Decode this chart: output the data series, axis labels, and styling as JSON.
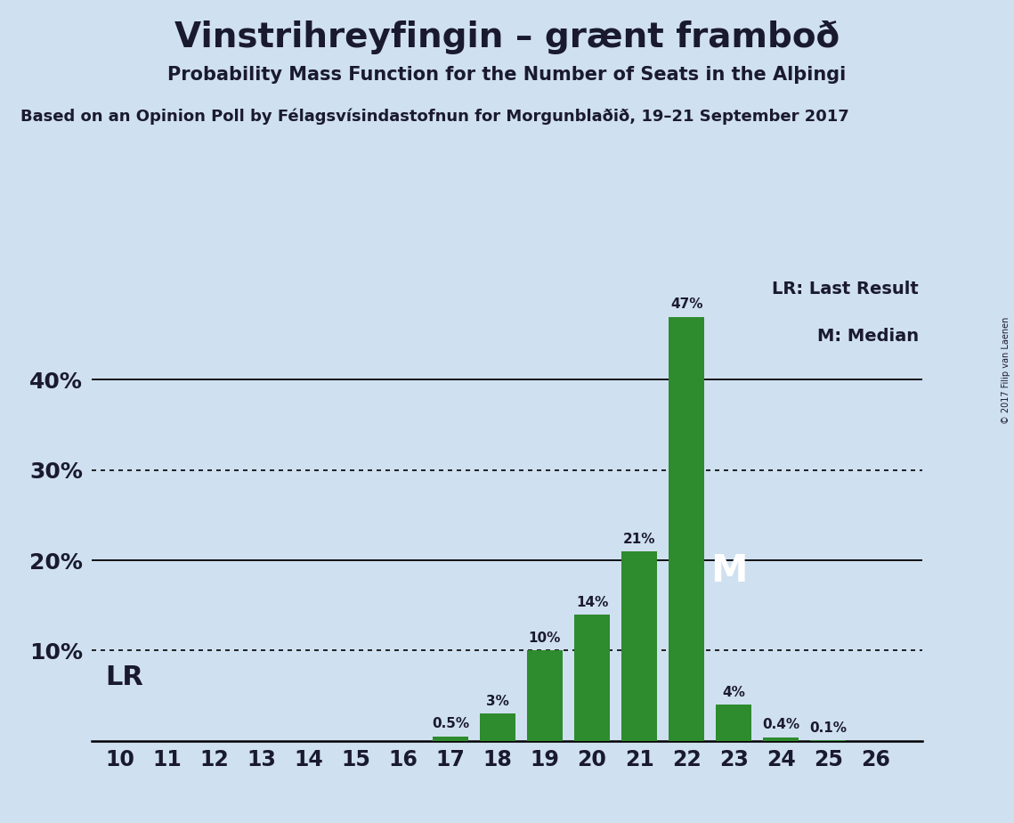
{
  "title": "Vinstrihreyfingin – grænt framboð",
  "subtitle": "Probability Mass Function for the Number of Seats in the Alþingi",
  "source_line": "Based on an Opinion Poll by Félagsvísindastofnun for Morgunblaðið, 19–21 September 2017",
  "copyright": "© 2017 Filip van Laenen",
  "seats": [
    10,
    11,
    12,
    13,
    14,
    15,
    16,
    17,
    18,
    19,
    20,
    21,
    22,
    23,
    24,
    25,
    26
  ],
  "probabilities": [
    0.0,
    0.0,
    0.0,
    0.0,
    0.0,
    0.0,
    0.0,
    0.5,
    3.0,
    10.0,
    14.0,
    21.0,
    47.0,
    4.0,
    0.4,
    0.1,
    0.0
  ],
  "bar_color": "#2e8b2e",
  "background_color": "#cfe0f0",
  "text_color": "#1a1a2e",
  "lr_seat": 10,
  "median_seat": 22,
  "lr_label": "LR",
  "median_label": "M",
  "legend_lr": "LR: Last Result",
  "legend_m": "M: Median",
  "yticks": [
    0,
    10,
    20,
    30,
    40,
    50
  ],
  "ytick_labels": [
    "",
    "10%",
    "20%",
    "30%",
    "40%",
    ""
  ],
  "ylim": [
    0,
    52
  ],
  "dotted_lines": [
    10,
    30
  ],
  "solid_lines": [
    20,
    40
  ]
}
